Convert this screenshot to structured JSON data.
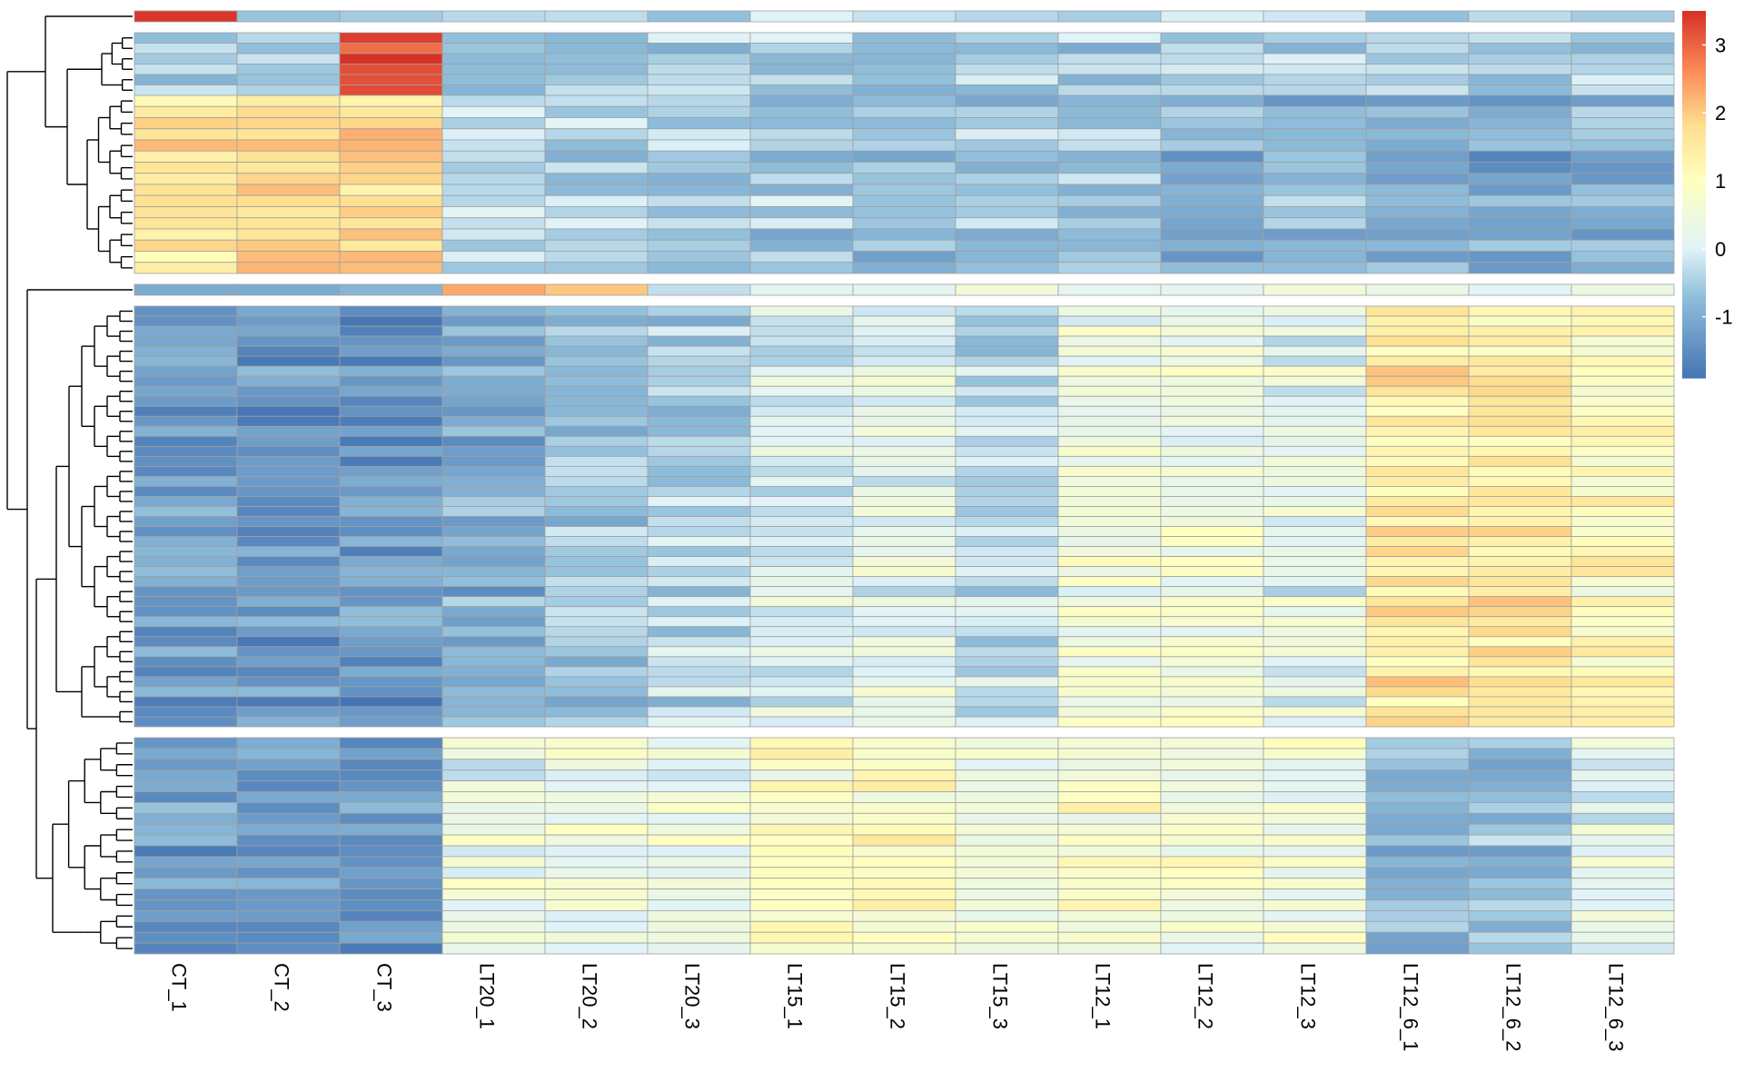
{
  "chart_data": {
    "type": "heatmap",
    "title": "",
    "columns": [
      "CT_1",
      "CT_2",
      "CT_3",
      "LT20_1",
      "LT20_2",
      "LT20_3",
      "LT15_1",
      "LT15_2",
      "LT15_3",
      "LT12_1",
      "LT12_2",
      "LT12_3",
      "LT12_6_1",
      "LT12_6_2",
      "LT12_6_3"
    ],
    "color_scale": {
      "min": -1.9,
      "max": 3.5,
      "ticks": [
        -1,
        0,
        1,
        2,
        3
      ],
      "tick_labels": [
        "-1",
        "0",
        "1",
        "2",
        "3"
      ],
      "colors": [
        "#4575b4",
        "#91bfdb",
        "#e0f3f8",
        "#ffffbf",
        "#fee090",
        "#fc8d59",
        "#d73027"
      ],
      "color_stops": [
        -1.9,
        -0.7,
        0,
        1,
        1.8,
        2.6,
        3.5
      ]
    },
    "row_groups": [
      {
        "rows": 1,
        "profile": [
          3.4,
          -0.3,
          -0.3,
          -0.3,
          -0.3,
          -0.3,
          -0.3,
          -0.3,
          -0.3,
          -0.3,
          -0.3,
          -0.3,
          -0.3,
          -0.3,
          -0.3
        ]
      },
      {
        "rows": 6,
        "profile": [
          -0.5,
          -0.5,
          3.3,
          -0.5,
          -0.5,
          -0.5,
          -0.5,
          -0.5,
          -0.5,
          -0.5,
          -0.5,
          -0.5,
          -0.5,
          -0.5,
          -0.5
        ]
      },
      {
        "rows": 16,
        "profile": [
          1.7,
          2.0,
          1.9,
          -0.2,
          -0.4,
          -0.5,
          -0.5,
          -0.6,
          -0.5,
          -0.5,
          -0.8,
          -0.8,
          -1.0,
          -1.0,
          -0.9
        ]
      },
      {
        "rows": 1,
        "profile": [
          -0.5,
          -0.5,
          -0.5,
          2.9,
          2.4,
          0.3,
          0.4,
          0.5,
          0.5,
          0.4,
          0.4,
          0.4,
          0.4,
          0.4,
          0.4
        ]
      },
      {
        "rows": 42,
        "profile": [
          -1.2,
          -1.3,
          -1.3,
          -1.0,
          -0.6,
          -0.4,
          0.0,
          0.2,
          -0.3,
          0.5,
          0.5,
          0.2,
          1.5,
          1.5,
          1.1
        ]
      },
      {
        "rows": 20,
        "profile": [
          -1.2,
          -1.3,
          -1.3,
          0.3,
          0.4,
          0.4,
          0.9,
          1.0,
          0.6,
          0.8,
          0.7,
          0.5,
          -0.8,
          -0.7,
          0.2
        ]
      }
    ]
  }
}
